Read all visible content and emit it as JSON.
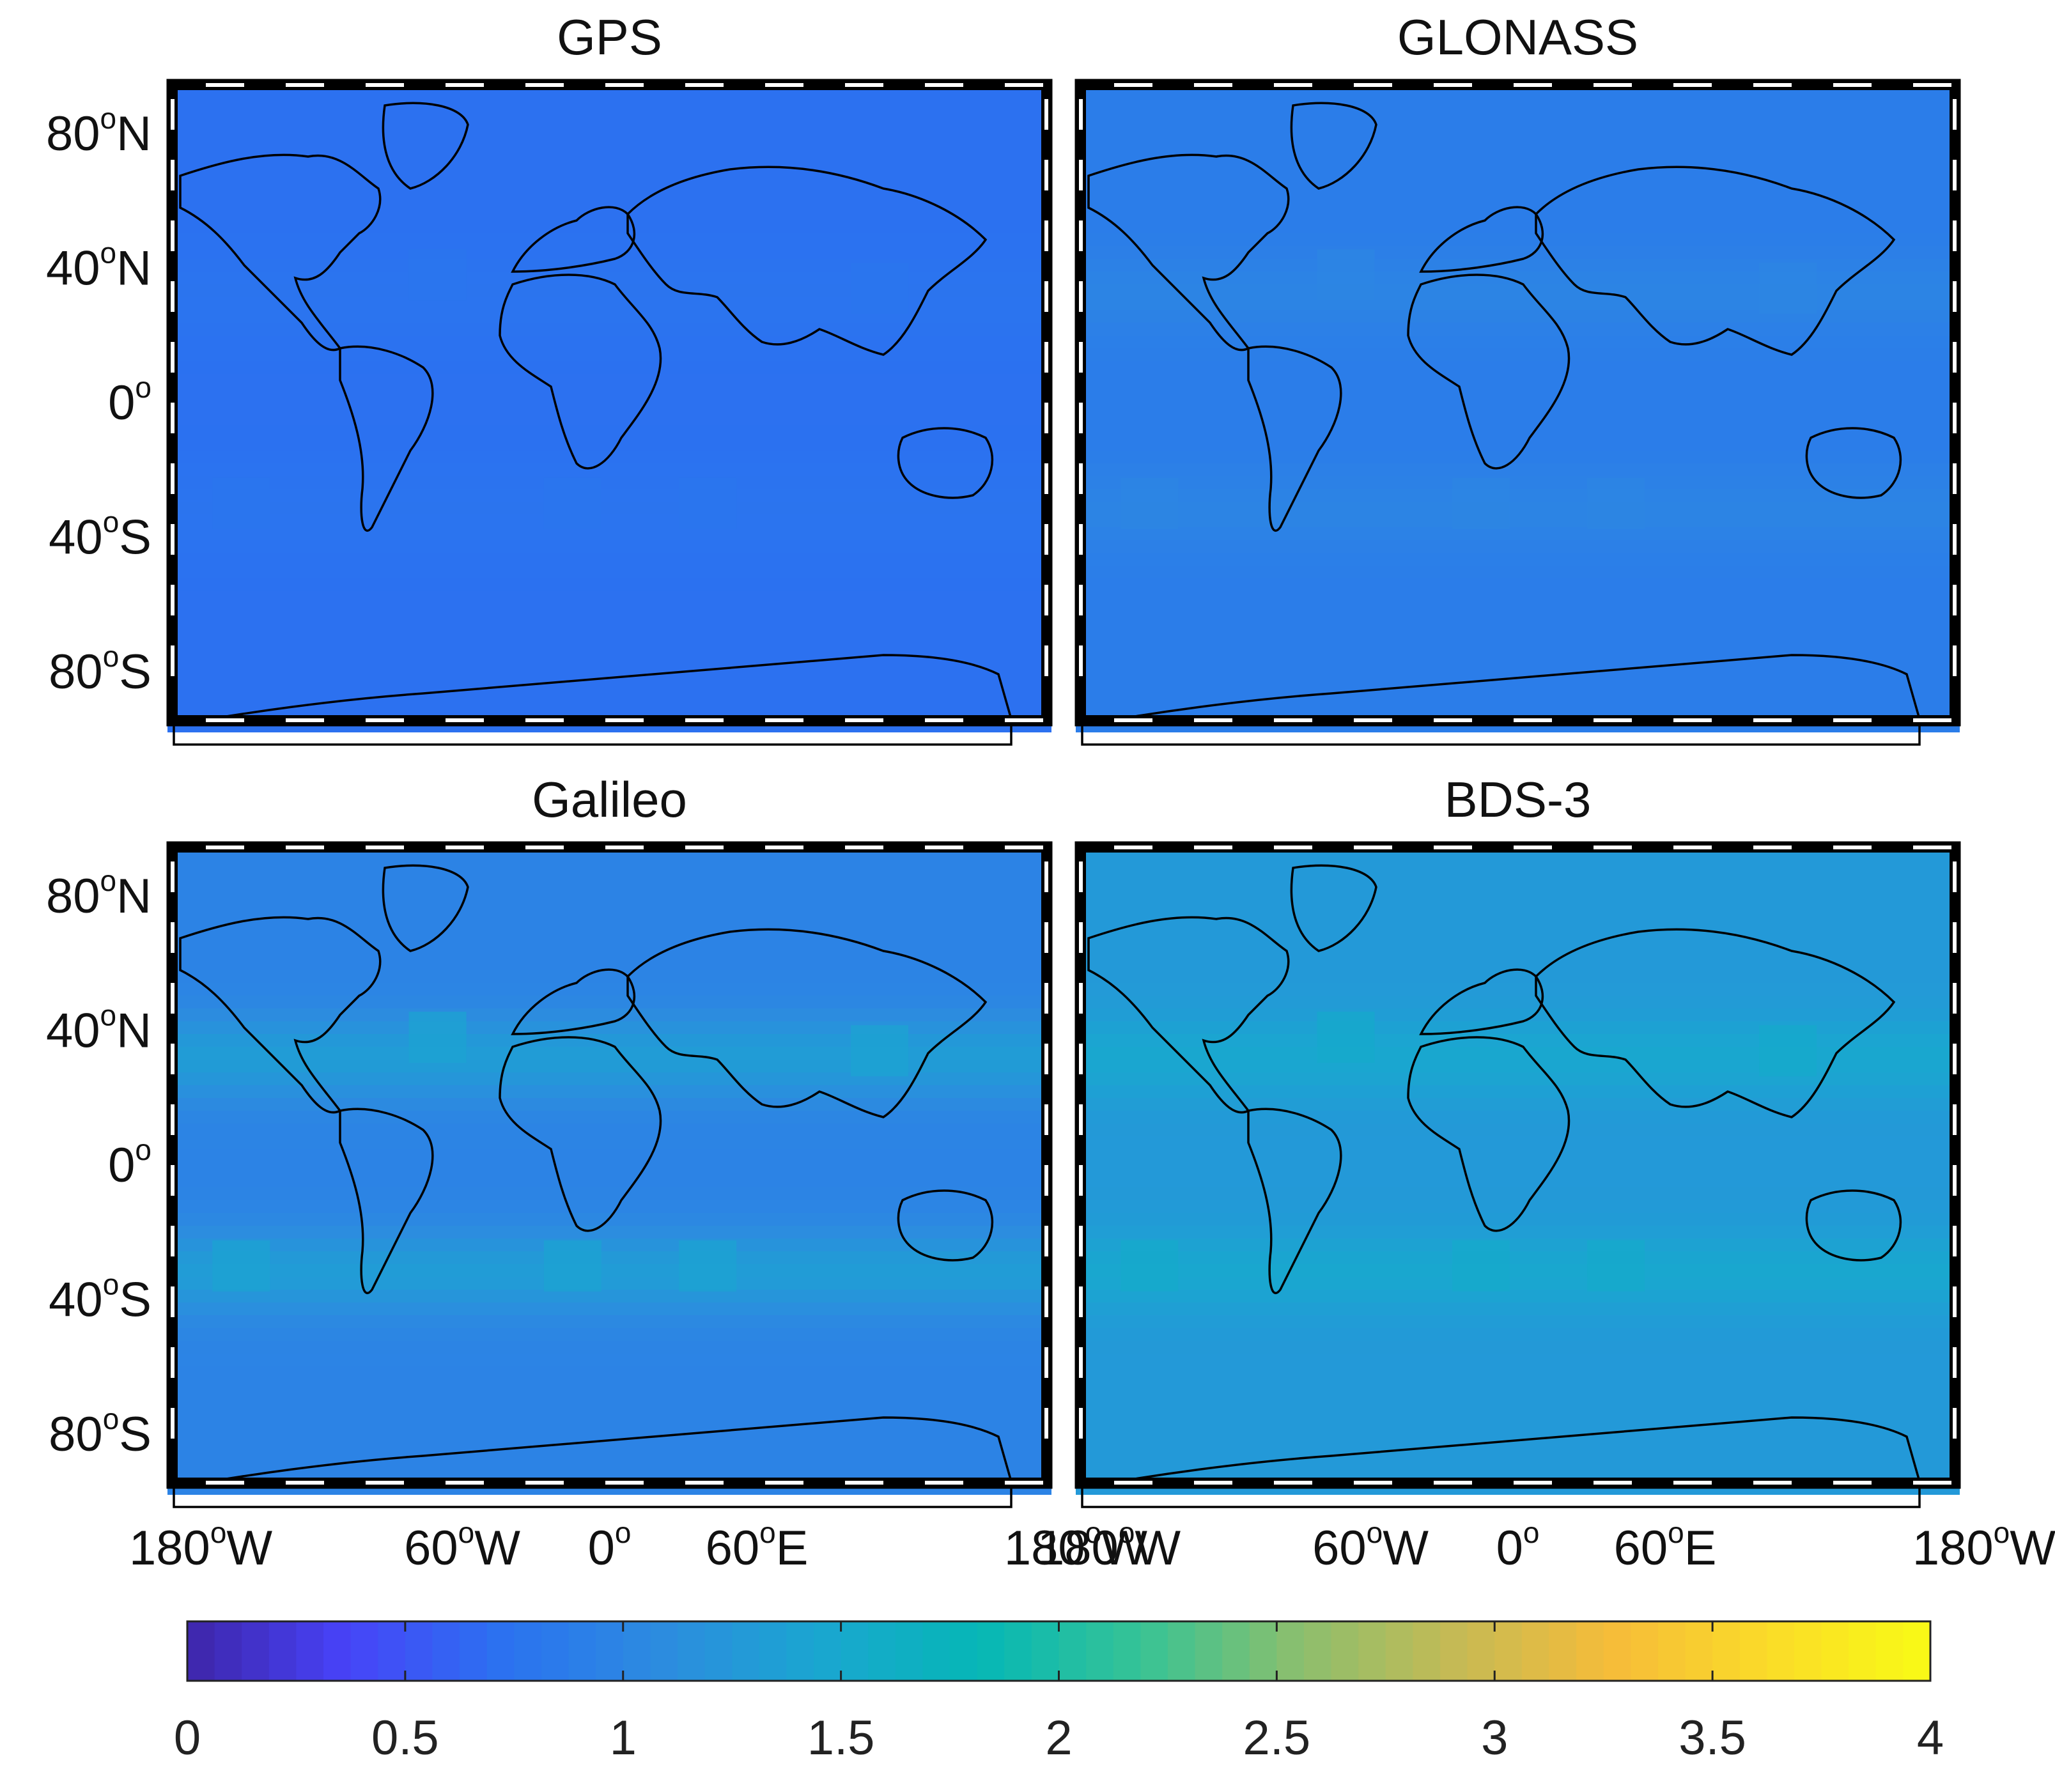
{
  "figure": {
    "panels": [
      {
        "id": "gps",
        "title": "GPS",
        "base_value": 0.72,
        "enhancement": 0.04,
        "show_y_labels": true,
        "show_x_labels": false
      },
      {
        "id": "glonass",
        "title": "GLONASS",
        "base_value": 0.88,
        "enhancement": 0.1,
        "show_y_labels": false,
        "show_x_labels": false
      },
      {
        "id": "galileo",
        "title": "Galileo",
        "base_value": 0.97,
        "enhancement": 0.35,
        "show_y_labels": true,
        "show_x_labels": true
      },
      {
        "id": "bds3",
        "title": "BDS-3",
        "base_value": 1.27,
        "enhancement": 0.2,
        "show_y_labels": false,
        "show_x_labels": true
      }
    ],
    "y_tick_labels": [
      {
        "lat": 80,
        "value": "80",
        "sup": "o",
        "suffix": "N"
      },
      {
        "lat": 40,
        "value": "40",
        "sup": "o",
        "suffix": "N"
      },
      {
        "lat": 0,
        "value": "0",
        "sup": "o",
        "suffix": ""
      },
      {
        "lat": -40,
        "value": "40",
        "sup": "o",
        "suffix": "S"
      },
      {
        "lat": -80,
        "value": "80",
        "sup": "o",
        "suffix": "S"
      }
    ],
    "x_tick_labels": [
      {
        "lon": -180,
        "value": "180",
        "sup": "o",
        "suffix": "W"
      },
      {
        "lon": -60,
        "value": "60",
        "sup": "o",
        "suffix": "W"
      },
      {
        "lon": 0,
        "value": "0",
        "sup": "o",
        "suffix": ""
      },
      {
        "lon": 60,
        "value": "60",
        "sup": "o",
        "suffix": "E"
      },
      {
        "lon": 180,
        "value": "180",
        "sup": "o",
        "suffix": "W"
      }
    ],
    "colorbar": {
      "min": 0,
      "max": 4,
      "tick_values": [
        0,
        0.5,
        1,
        1.5,
        2,
        2.5,
        3,
        3.5,
        4
      ],
      "tick_labels": [
        "0",
        "0.5",
        "1",
        "1.5",
        "2",
        "2.5",
        "3",
        "3.5",
        "4"
      ],
      "colormap": "parula",
      "colormap_stops": [
        "#3e26a8",
        "#4743f8",
        "#2b72f0",
        "#2c8cdf",
        "#1aa6d0",
        "#06b7b6",
        "#35c396",
        "#8abf6e",
        "#c5ba55",
        "#f6bc39",
        "#fadc28",
        "#f9fb15"
      ]
    },
    "colors": {
      "coastline": "#000000",
      "frame": "#000000",
      "frame_dash": "#ffffff"
    }
  }
}
